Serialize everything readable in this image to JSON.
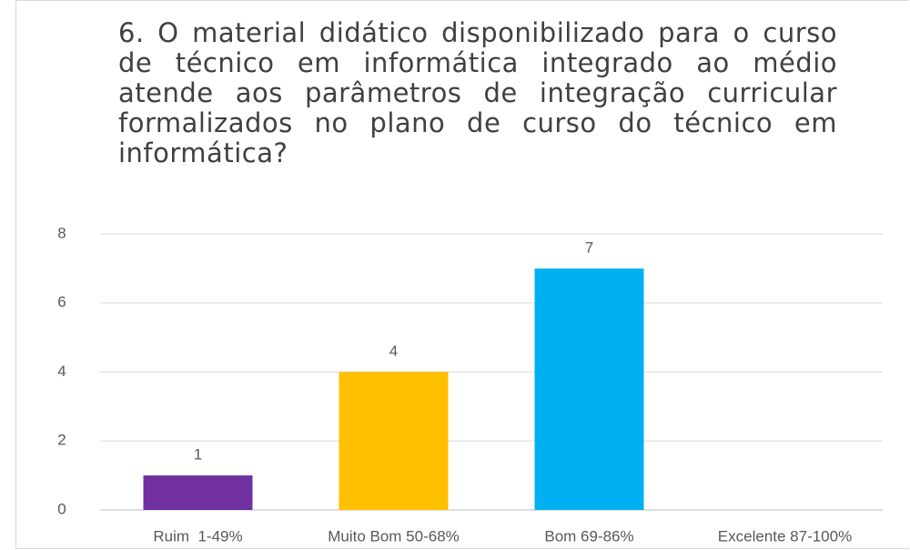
{
  "chart_data": {
    "type": "bar",
    "title": "6. O material didático disponibilizado para o curso de técnico em informática integrado ao médio atende aos parâmetros de integração curricular formalizados no plano de curso do técnico em informática?",
    "categories": [
      "Ruim  1-49%",
      "Muito Bom 50-68%",
      "Bom 69-86%",
      "Excelente 87-100%"
    ],
    "values": [
      1,
      4,
      7,
      null
    ],
    "colors": [
      "#7030a0",
      "#ffc000",
      "#00b0f0",
      "#4472c4"
    ],
    "ylim": [
      0,
      8
    ],
    "yticks": [
      0,
      2,
      4,
      6,
      8
    ],
    "grid": true
  }
}
